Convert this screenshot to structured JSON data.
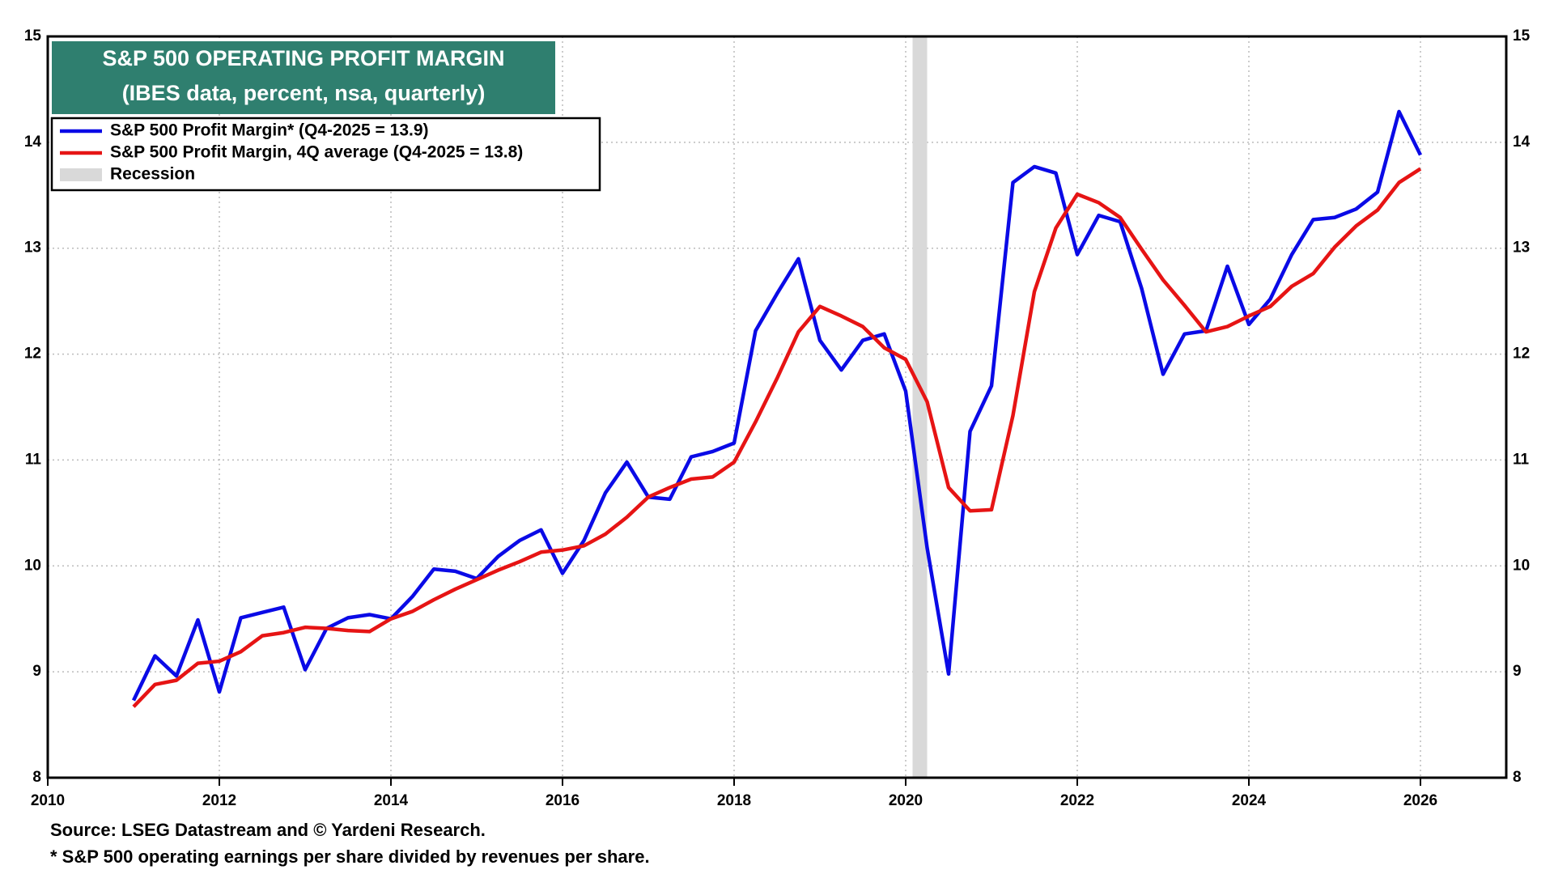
{
  "chart_data": {
    "type": "line",
    "title": "S&P 500 OPERATING PROFIT MARGIN",
    "subtitle": "(IBES data, percent, nsa, quarterly)",
    "source": "Source: LSEG Datastream and © Yardeni Research.",
    "footnote": "* S&P 500 operating earnings per share divided by revenues per share.",
    "x": [
      2011,
      2011.25,
      2011.5,
      2011.75,
      2012,
      2012.25,
      2012.5,
      2012.75,
      2013,
      2013.25,
      2013.5,
      2013.75,
      2014,
      2014.25,
      2014.5,
      2014.75,
      2015,
      2015.25,
      2015.5,
      2015.75,
      2016,
      2016.25,
      2016.5,
      2016.75,
      2017,
      2017.25,
      2017.5,
      2017.75,
      2018,
      2018.25,
      2018.5,
      2018.75,
      2019,
      2019.25,
      2019.5,
      2019.75,
      2020,
      2020.25,
      2020.5,
      2020.75,
      2021,
      2021.25,
      2021.5,
      2021.75,
      2022,
      2022.25,
      2022.5,
      2022.75,
      2023,
      2023.25,
      2023.5,
      2023.75,
      2024,
      2024.25,
      2024.5,
      2024.75,
      2025,
      2025.25,
      2025.5,
      2025.75,
      2026
    ],
    "series": [
      {
        "name": "S&P 500 Profit Margin* (Q4-2025 = 13.9)",
        "color": "#0a0ae6",
        "values": [
          8.73,
          9.15,
          8.96,
          9.49,
          8.81,
          9.51,
          9.56,
          9.61,
          9.02,
          9.41,
          9.51,
          9.54,
          9.5,
          9.71,
          9.97,
          9.95,
          9.88,
          10.09,
          10.24,
          10.34,
          9.93,
          10.24,
          10.69,
          10.98,
          10.65,
          10.63,
          11.03,
          11.08,
          11.16,
          12.22,
          12.57,
          12.9,
          12.13,
          11.85,
          12.13,
          12.19,
          11.65,
          10.17,
          8.98,
          11.27,
          11.7,
          13.62,
          13.77,
          13.71,
          12.94,
          13.31,
          13.25,
          12.62,
          11.81,
          12.19,
          12.22,
          12.83,
          12.28,
          12.52,
          12.94,
          13.27,
          13.29,
          13.37,
          13.53,
          14.29,
          13.88
        ]
      },
      {
        "name": "S&P 500 Profit Margin, 4Q average (Q4-2025 = 13.8)",
        "color": "#e61414",
        "values": [
          8.67,
          8.88,
          8.92,
          9.08,
          9.1,
          9.19,
          9.34,
          9.37,
          9.42,
          9.41,
          9.39,
          9.38,
          9.5,
          9.57,
          9.68,
          9.78,
          9.87,
          9.96,
          10.04,
          10.13,
          10.15,
          10.19,
          10.3,
          10.46,
          10.65,
          10.74,
          10.82,
          10.84,
          10.98,
          11.36,
          11.77,
          12.21,
          12.45,
          12.36,
          12.26,
          12.06,
          11.95,
          11.55,
          10.74,
          10.52,
          10.53,
          11.42,
          12.59,
          13.19,
          13.51,
          13.43,
          13.29,
          12.99,
          12.7,
          12.46,
          12.21,
          12.26,
          12.36,
          12.45,
          12.64,
          12.76,
          13.01,
          13.21,
          13.36,
          13.62,
          13.75
        ]
      }
    ],
    "bands": {
      "name": "Recession",
      "color": "#d9d9d9",
      "ranges": [
        [
          2020.08,
          2020.25
        ]
      ]
    },
    "xlim": [
      2010,
      2027
    ],
    "xticks": [
      2010,
      2012,
      2014,
      2016,
      2018,
      2020,
      2022,
      2024,
      2026
    ],
    "ylim": [
      8,
      15
    ],
    "yticks": [
      8,
      9,
      10,
      11,
      12,
      13,
      14,
      15
    ],
    "grid": true,
    "title_color": "#2f7f6f"
  }
}
